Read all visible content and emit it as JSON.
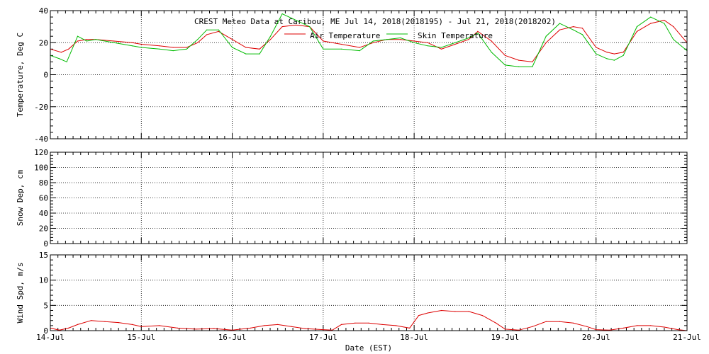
{
  "title": "CREST Meteo Data at Caribou, ME   Jul 14, 2018(2018195) - Jul 21, 2018(2018202)",
  "xlabel": "Date (EST)",
  "chart_data": [
    {
      "type": "line",
      "ylabel": "Temperature, Deg C",
      "ylim": [
        -40,
        40
      ],
      "yticks": [
        -40,
        -20,
        0,
        20,
        40
      ],
      "grid": true,
      "legend_position": "top",
      "categories": [
        "14-Jul",
        "15-Jul",
        "16-Jul",
        "17-Jul",
        "18-Jul",
        "19-Jul",
        "20-Jul",
        "21-Jul"
      ],
      "xlim": [
        0,
        7
      ],
      "series": [
        {
          "name": "Air Temperature",
          "color": "#dd0000",
          "x": [
            0,
            0.12,
            0.2,
            0.3,
            0.4,
            0.5,
            0.7,
            0.9,
            1.0,
            1.2,
            1.35,
            1.5,
            1.62,
            1.72,
            1.85,
            2.0,
            2.15,
            2.3,
            2.42,
            2.55,
            2.7,
            2.85,
            3.0,
            3.2,
            3.4,
            3.55,
            3.7,
            3.85,
            4.0,
            4.15,
            4.3,
            4.45,
            4.6,
            4.7,
            4.85,
            5.0,
            5.15,
            5.3,
            5.45,
            5.6,
            5.75,
            5.85,
            6.0,
            6.12,
            6.2,
            6.3,
            6.45,
            6.6,
            6.75,
            6.85,
            7.0
          ],
          "y": [
            16,
            14,
            16,
            21,
            22,
            22,
            21,
            20,
            19,
            18,
            17,
            17,
            20,
            25,
            27,
            22,
            17,
            16,
            22,
            30,
            31,
            30,
            21,
            19,
            17,
            20,
            22,
            22,
            21,
            20,
            16,
            19,
            22,
            27,
            21,
            12,
            9,
            8,
            20,
            28,
            30,
            29,
            17,
            14,
            13,
            14,
            27,
            32,
            34,
            30,
            20
          ]
        },
        {
          "name": "Skin Temperature",
          "color": "#00bb00",
          "x": [
            0,
            0.1,
            0.18,
            0.3,
            0.4,
            0.5,
            0.7,
            0.9,
            1.0,
            1.2,
            1.35,
            1.5,
            1.62,
            1.72,
            1.85,
            2.0,
            2.15,
            2.3,
            2.42,
            2.55,
            2.7,
            2.85,
            3.0,
            3.2,
            3.4,
            3.55,
            3.7,
            3.85,
            4.0,
            4.15,
            4.3,
            4.45,
            4.6,
            4.7,
            4.85,
            5.0,
            5.15,
            5.3,
            5.45,
            5.6,
            5.75,
            5.85,
            6.0,
            6.12,
            6.2,
            6.3,
            6.45,
            6.6,
            6.75,
            6.85,
            7.0
          ],
          "y": [
            12,
            10,
            8,
            24,
            21,
            22,
            20,
            18,
            17,
            16,
            15,
            16,
            22,
            28,
            28,
            17,
            13,
            13,
            24,
            38,
            34,
            30,
            16,
            16,
            15,
            21,
            22,
            23,
            20,
            18,
            17,
            20,
            23,
            26,
            14,
            6,
            5,
            5,
            24,
            32,
            28,
            25,
            13,
            10,
            9,
            12,
            30,
            36,
            32,
            22,
            15
          ]
        }
      ]
    },
    {
      "type": "line",
      "ylabel": "Snow Dep, cm",
      "ylim": [
        0,
        120
      ],
      "yticks": [
        0,
        20,
        40,
        60,
        80,
        100,
        120
      ],
      "grid": true,
      "categories": [
        "14-Jul",
        "15-Jul",
        "16-Jul",
        "17-Jul",
        "18-Jul",
        "19-Jul",
        "20-Jul",
        "21-Jul"
      ],
      "xlim": [
        0,
        7
      ],
      "series": [
        {
          "color": "#0000cc",
          "x": [
            3.82,
            3.97
          ],
          "y": [
            0,
            0
          ]
        }
      ]
    },
    {
      "type": "line",
      "ylabel": "Wind Spd, m/s",
      "ylim": [
        0,
        15
      ],
      "yticks": [
        0,
        5,
        10,
        15
      ],
      "grid": true,
      "categories": [
        "14-Jul",
        "15-Jul",
        "16-Jul",
        "17-Jul",
        "18-Jul",
        "19-Jul",
        "20-Jul",
        "21-Jul"
      ],
      "xlim": [
        0,
        7
      ],
      "series": [
        {
          "color": "#dd0000",
          "x": [
            0,
            0.1,
            0.2,
            0.3,
            0.45,
            0.6,
            0.75,
            0.9,
            1.0,
            1.2,
            1.4,
            1.6,
            1.8,
            2.0,
            2.2,
            2.35,
            2.5,
            2.65,
            2.8,
            3.0,
            3.1,
            3.2,
            3.35,
            3.5,
            3.65,
            3.8,
            3.95,
            4.05,
            4.15,
            4.3,
            4.45,
            4.6,
            4.75,
            4.9,
            5.0,
            5.15,
            5.3,
            5.45,
            5.6,
            5.75,
            5.9,
            6.0,
            6.15,
            6.3,
            6.45,
            6.6,
            6.75,
            6.9,
            7.0
          ],
          "y": [
            0.5,
            0.1,
            0.5,
            1.2,
            2.0,
            1.8,
            1.6,
            1.2,
            0.8,
            1.0,
            0.5,
            0.3,
            0.4,
            0.1,
            0.5,
            1.0,
            1.2,
            0.8,
            0.4,
            0.2,
            0.1,
            1.2,
            1.5,
            1.5,
            1.2,
            1.0,
            0.5,
            3.0,
            3.5,
            4.0,
            3.8,
            3.8,
            3.0,
            1.5,
            0.3,
            0.1,
            0.8,
            1.8,
            1.8,
            1.5,
            0.8,
            0.2,
            0.1,
            0.5,
            1.0,
            1.0,
            0.7,
            0.2,
            0.0
          ]
        }
      ]
    }
  ]
}
